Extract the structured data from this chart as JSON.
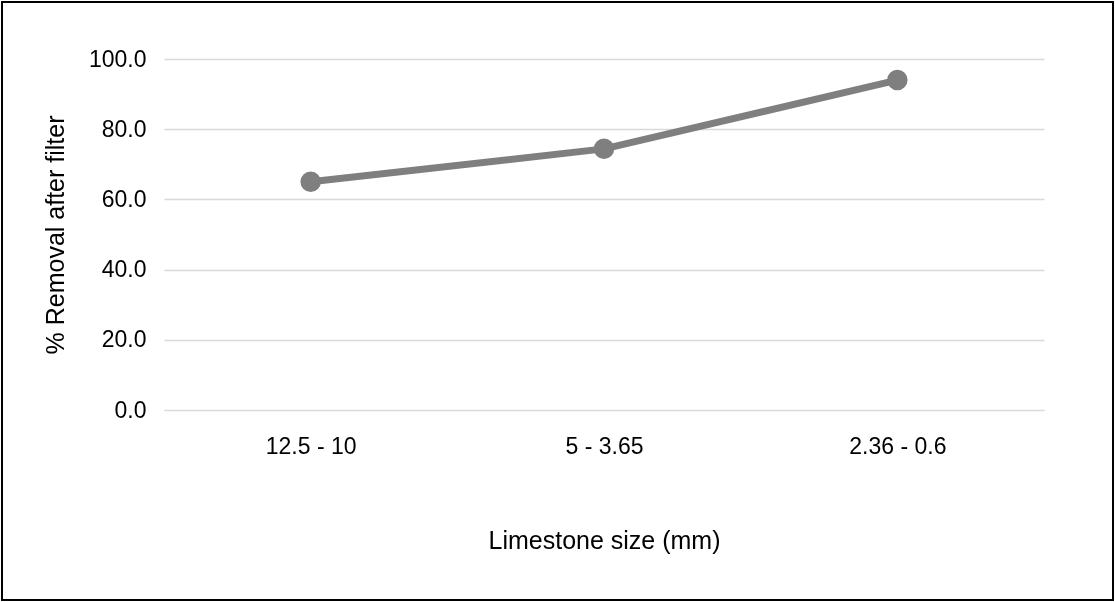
{
  "chart_data": {
    "type": "line",
    "xlabel": "Limestone size (mm)",
    "ylabel": "% Removal after filter",
    "categories": [
      "12.5 - 10",
      "5 - 3.65",
      "2.36 - 0.6"
    ],
    "series": [
      {
        "color": "#7f7f7f",
        "values": [
          65.0,
          74.4,
          94.0
        ]
      }
    ],
    "ylim": [
      0,
      100
    ],
    "yticks": [
      {
        "value": 0,
        "label": "0.0"
      },
      {
        "value": 20,
        "label": "20.0"
      },
      {
        "value": 40,
        "label": "40.0"
      },
      {
        "value": 60,
        "label": "60.0"
      },
      {
        "value": 80,
        "label": "80.0"
      },
      {
        "value": 100,
        "label": "100.0"
      }
    ],
    "grid": "y",
    "marker": "circle",
    "line_style": "solid",
    "legend": false
  }
}
